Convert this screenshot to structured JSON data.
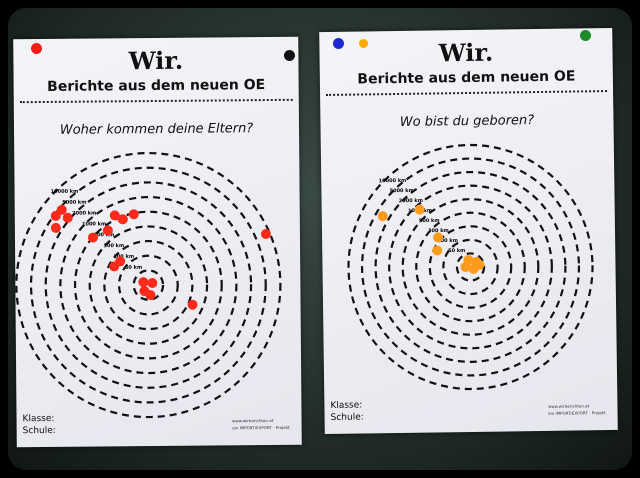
{
  "posters": [
    {
      "title": "Wir.",
      "subtitle": "Berichte aus dem neuen OE",
      "question": "Woher kommen deine Eltern?",
      "klasse": "Klasse:",
      "schule": "Schule:",
      "web": "www.wirberichten.at",
      "project": "ein IMPORT/EXPORT - Projekt",
      "dot_color": "#ff2a1a"
    },
    {
      "title": "Wir.",
      "subtitle": "Berichte aus dem neuen OE",
      "question": "Wo bist du geboren?",
      "klasse": "Klasse:",
      "schule": "Schule:",
      "web": "www.wirberichten.at",
      "project": "ein IMPORT/EXPORT - Projekt",
      "dot_color": "#ff9a1a"
    }
  ],
  "ring_labels": [
    "50 km",
    "100 km",
    "300 km",
    "500 km",
    "1000 km",
    "2000 km",
    "5000 km",
    "10000 km"
  ],
  "pins": {
    "poster1": [
      "#ff1a1a",
      "#111111"
    ],
    "poster2": [
      "#1a2ad0",
      "#ffaa00",
      "#1a8a2a"
    ]
  }
}
